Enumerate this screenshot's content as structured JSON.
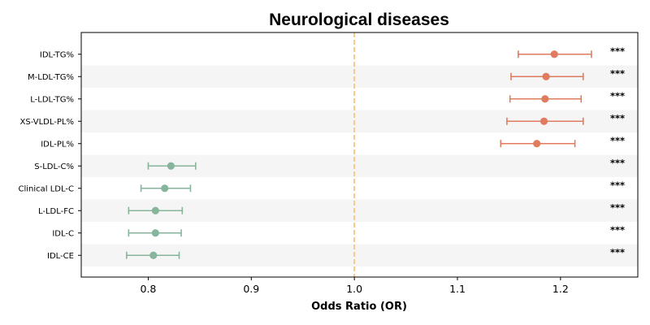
{
  "chart_data": {
    "type": "forest",
    "title": "Neurological diseases",
    "xlabel": "Odds Ratio (OR)",
    "ylabel": "",
    "xlim": [
      0.735,
      1.275
    ],
    "xticks": [
      0.8,
      0.9,
      1.0,
      1.1,
      1.2
    ],
    "xtick_labels": [
      "0.8",
      "0.9",
      "1.0",
      "1.1",
      "1.2"
    ],
    "reference_line": 1.0,
    "grid": false,
    "colors": {
      "risk": "#e07b5f",
      "protective": "#86b59b",
      "reference": "#f2c98a",
      "band": "#f5f5f5"
    },
    "rows": [
      {
        "label": "IDL-TG%",
        "or": 1.194,
        "lower": 1.159,
        "upper": 1.23,
        "sig": "***",
        "group": "risk"
      },
      {
        "label": "M-LDL-TG%",
        "or": 1.186,
        "lower": 1.152,
        "upper": 1.222,
        "sig": "***",
        "group": "risk"
      },
      {
        "label": "L-LDL-TG%",
        "or": 1.185,
        "lower": 1.151,
        "upper": 1.22,
        "sig": "***",
        "group": "risk"
      },
      {
        "label": "XS-VLDL-PL%",
        "or": 1.184,
        "lower": 1.148,
        "upper": 1.222,
        "sig": "***",
        "group": "risk"
      },
      {
        "label": "IDL-PL%",
        "or": 1.177,
        "lower": 1.142,
        "upper": 1.214,
        "sig": "***",
        "group": "risk"
      },
      {
        "label": "S-LDL-C%",
        "or": 0.822,
        "lower": 0.8,
        "upper": 0.846,
        "sig": "***",
        "group": "protective"
      },
      {
        "label": "Clinical LDL-C",
        "or": 0.816,
        "lower": 0.793,
        "upper": 0.841,
        "sig": "***",
        "group": "protective"
      },
      {
        "label": "L-LDL-FC",
        "or": 0.807,
        "lower": 0.781,
        "upper": 0.833,
        "sig": "***",
        "group": "protective"
      },
      {
        "label": "IDL-C",
        "or": 0.807,
        "lower": 0.781,
        "upper": 0.832,
        "sig": "***",
        "group": "protective"
      },
      {
        "label": "IDL-CE",
        "or": 0.805,
        "lower": 0.779,
        "upper": 0.83,
        "sig": "***",
        "group": "protective"
      }
    ]
  }
}
